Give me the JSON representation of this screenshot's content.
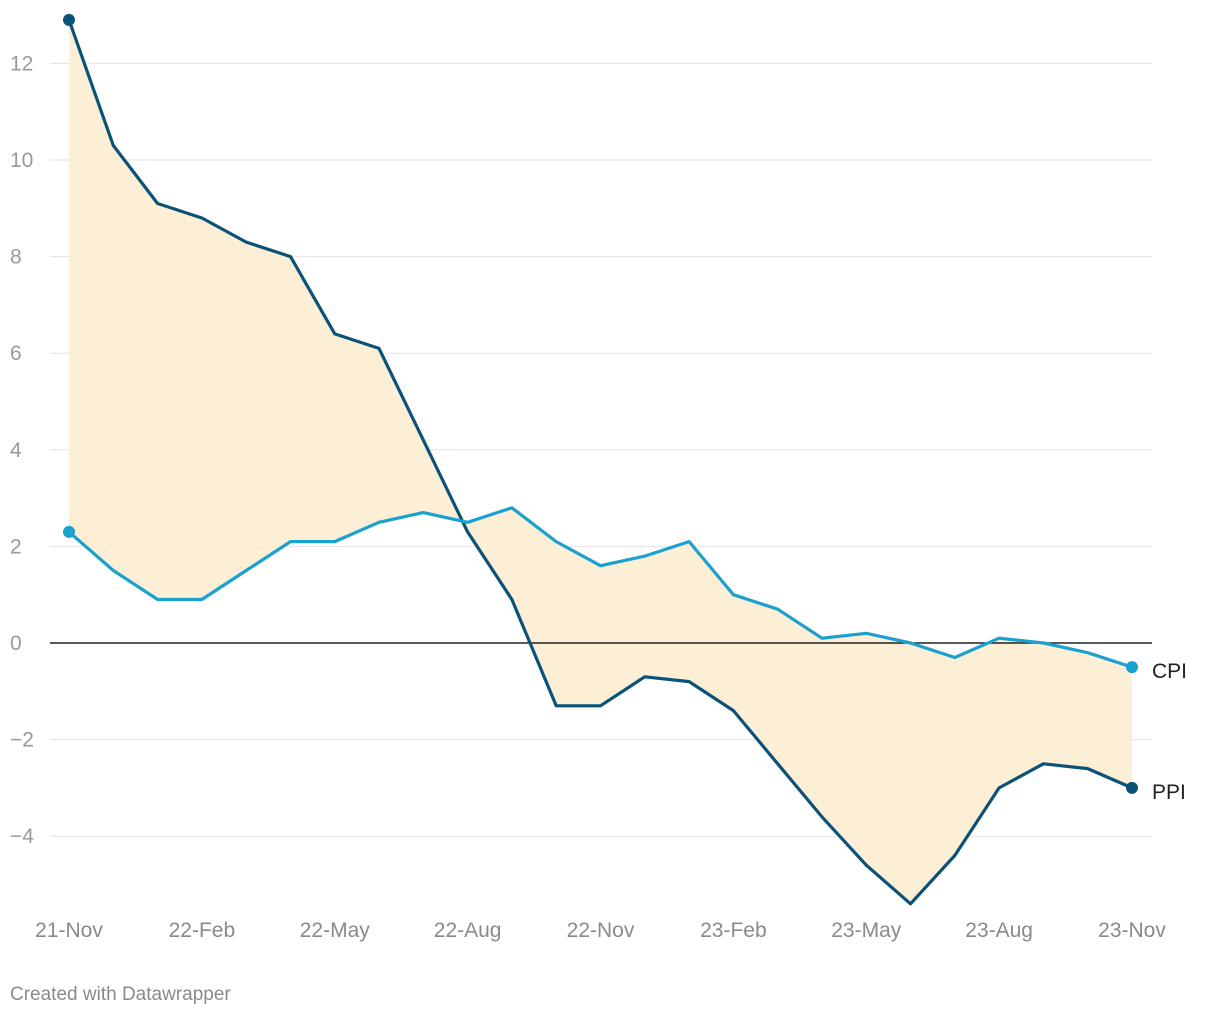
{
  "chart_data": {
    "type": "line",
    "x": [
      "21-Nov",
      "21-Dec",
      "22-Jan",
      "22-Feb",
      "22-Mar",
      "22-Apr",
      "22-May",
      "22-Jun",
      "22-Jul",
      "22-Aug",
      "22-Sep",
      "22-Oct",
      "22-Nov",
      "22-Dec",
      "23-Jan",
      "23-Feb",
      "23-Mar",
      "23-Apr",
      "23-May",
      "23-Jun",
      "23-Jul",
      "23-Aug",
      "23-Sep",
      "23-Oct",
      "23-Nov"
    ],
    "x_ticks": [
      "21-Nov",
      "22-Feb",
      "22-May",
      "22-Aug",
      "22-Nov",
      "23-Feb",
      "23-May",
      "23-Aug",
      "23-Nov"
    ],
    "y_ticks": [
      "12",
      "10",
      "8",
      "6",
      "4",
      "2",
      "0",
      "−2",
      "−4"
    ],
    "y_tick_values": [
      12,
      10,
      8,
      6,
      4,
      2,
      0,
      -2,
      -4
    ],
    "ylim": [
      -5.4,
      12.9
    ],
    "grid": true,
    "shaded_between_series": true,
    "series": [
      {
        "name": "PPI",
        "color": "#0b5278",
        "values": [
          12.9,
          10.3,
          9.1,
          8.8,
          8.3,
          8.0,
          6.4,
          6.1,
          4.2,
          2.3,
          0.9,
          -1.3,
          -1.3,
          -0.7,
          -0.8,
          -1.4,
          -2.5,
          -3.6,
          -4.6,
          -5.4,
          -4.4,
          -3.0,
          -2.5,
          -2.6,
          -3.0
        ]
      },
      {
        "name": "CPI",
        "color": "#1ba1cf",
        "values": [
          2.3,
          1.5,
          0.9,
          0.9,
          1.5,
          2.1,
          2.1,
          2.5,
          2.7,
          2.5,
          2.8,
          2.1,
          1.6,
          1.8,
          2.1,
          1.0,
          0.7,
          0.1,
          0.2,
          0.0,
          -0.3,
          0.1,
          0.0,
          -0.2,
          -0.5
        ]
      }
    ],
    "fill_color": "#fdeed6"
  },
  "footer": {
    "credit": "Created with Datawrapper"
  }
}
